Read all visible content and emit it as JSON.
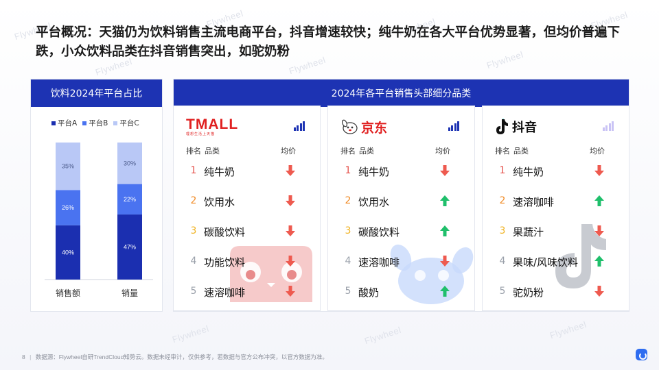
{
  "title": "平台概况：天猫仍为饮料销售主流电商平台，抖音增速较快；纯牛奶在各大平台优势显著，但均价普遍下跌，小众饮料品类在抖音销售突出，如驼奶粉",
  "watermark": "Flywheel",
  "colors": {
    "primary": "#1d33b3",
    "series_a": "#1b2fb0",
    "series_b": "#4a73f0",
    "series_c": "#b9c8f6",
    "up": "#1fbf6b",
    "down": "#ee5a4f"
  },
  "left_panel": {
    "header": "饮料2024年平台占比",
    "chart_data": {
      "type": "bar",
      "stacked": true,
      "percent": true,
      "categories": [
        "销售额",
        "销量"
      ],
      "series": [
        {
          "name": "平台A",
          "values": [
            40,
            47
          ]
        },
        {
          "name": "平台B",
          "values": [
            26,
            22
          ]
        },
        {
          "name": "平台C",
          "values": [
            35,
            30
          ]
        }
      ],
      "value_labels": [
        [
          "40%",
          "26%",
          "35%"
        ],
        [
          "47%",
          "22%",
          "30%"
        ]
      ],
      "legend_position": "top",
      "grid": false
    }
  },
  "right_panel": {
    "header": "2024年各平台销售头部细分品类",
    "col_rank": "排名",
    "col_category": "品类",
    "col_price": "均价",
    "platforms": [
      {
        "logo_text": "TMALL",
        "logo_subtext": "理想生活上天猫",
        "icon": "tmall-cat-icon",
        "signal_color": "#1d33b3",
        "items": [
          {
            "rank": "1",
            "category": "纯牛奶",
            "price_trend": "down"
          },
          {
            "rank": "2",
            "category": "饮用水",
            "price_trend": "down"
          },
          {
            "rank": "3",
            "category": "碳酸饮料",
            "price_trend": "down"
          },
          {
            "rank": "4",
            "category": "功能饮料",
            "price_trend": "down"
          },
          {
            "rank": "5",
            "category": "速溶咖啡",
            "price_trend": "down"
          }
        ]
      },
      {
        "logo_text": "京东",
        "icon": "jd-dog-icon",
        "signal_color": "#1d33b3",
        "items": [
          {
            "rank": "1",
            "category": "纯牛奶",
            "price_trend": "down"
          },
          {
            "rank": "2",
            "category": "饮用水",
            "price_trend": "up"
          },
          {
            "rank": "3",
            "category": "碳酸饮料",
            "price_trend": "up"
          },
          {
            "rank": "4",
            "category": "速溶咖啡",
            "price_trend": "down"
          },
          {
            "rank": "5",
            "category": "酸奶",
            "price_trend": "up"
          }
        ]
      },
      {
        "logo_text": "抖音",
        "icon": "douyin-note-icon",
        "signal_color": "#c9c3f5",
        "items": [
          {
            "rank": "1",
            "category": "纯牛奶",
            "price_trend": "down"
          },
          {
            "rank": "2",
            "category": "速溶咖啡",
            "price_trend": "up"
          },
          {
            "rank": "3",
            "category": "果蔬汁",
            "price_trend": "down"
          },
          {
            "rank": "4",
            "category": "果味/风味饮料",
            "price_trend": "up"
          },
          {
            "rank": "5",
            "category": "驼奶粉",
            "price_trend": "down"
          }
        ]
      }
    ]
  },
  "footer": {
    "page": "8",
    "source": "数据源：Flywheel自研TrendCloud知势云。数据未经审计，仅供参考，若数据与官方公布冲突，以官方数据为准。"
  }
}
